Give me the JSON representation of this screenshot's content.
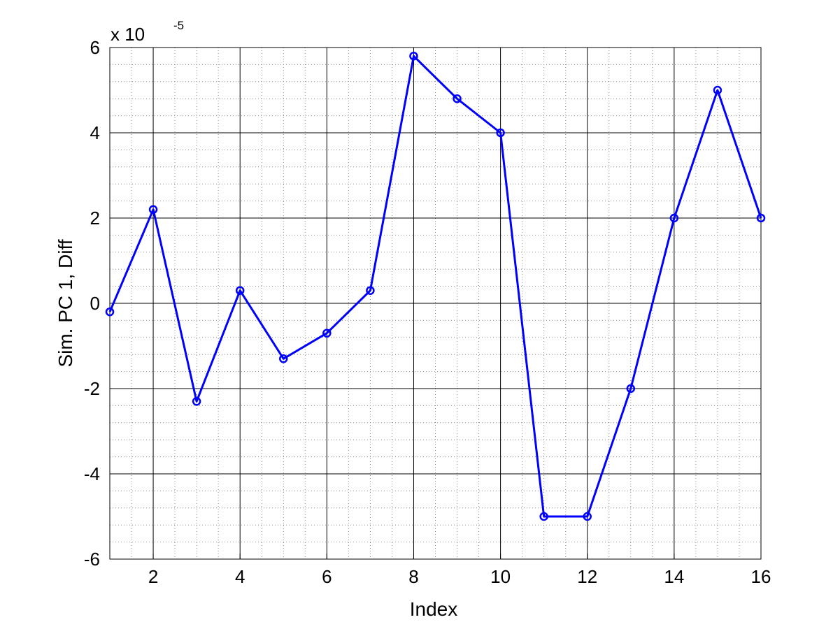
{
  "chart_data": {
    "type": "line",
    "xlabel": "Index",
    "ylabel": "Sim. PC 1, Diff",
    "y_multiplier": {
      "base": "x 10",
      "exponent": "-5"
    },
    "xlim": [
      1,
      16
    ],
    "ylim": [
      -6,
      6
    ],
    "xticks": [
      2,
      4,
      6,
      8,
      10,
      12,
      14,
      16
    ],
    "yticks": [
      -6,
      -4,
      -2,
      0,
      2,
      4,
      6
    ],
    "x_minor_step": 0.5,
    "y_minor_step": 0.4,
    "grid": true,
    "minor_grid": true,
    "color": "#0000ff",
    "marker": "circle",
    "series": [
      {
        "x": [
          1,
          2,
          3,
          4,
          5,
          6,
          7,
          8,
          9,
          10,
          11,
          12,
          13,
          14,
          15,
          16
        ],
        "values": [
          -0.2,
          2.2,
          -2.3,
          0.3,
          -1.3,
          -0.7,
          0.3,
          5.8,
          4.8,
          4.0,
          -5.0,
          -5.0,
          -2.0,
          2.0,
          5.0,
          2.0
        ]
      }
    ]
  }
}
